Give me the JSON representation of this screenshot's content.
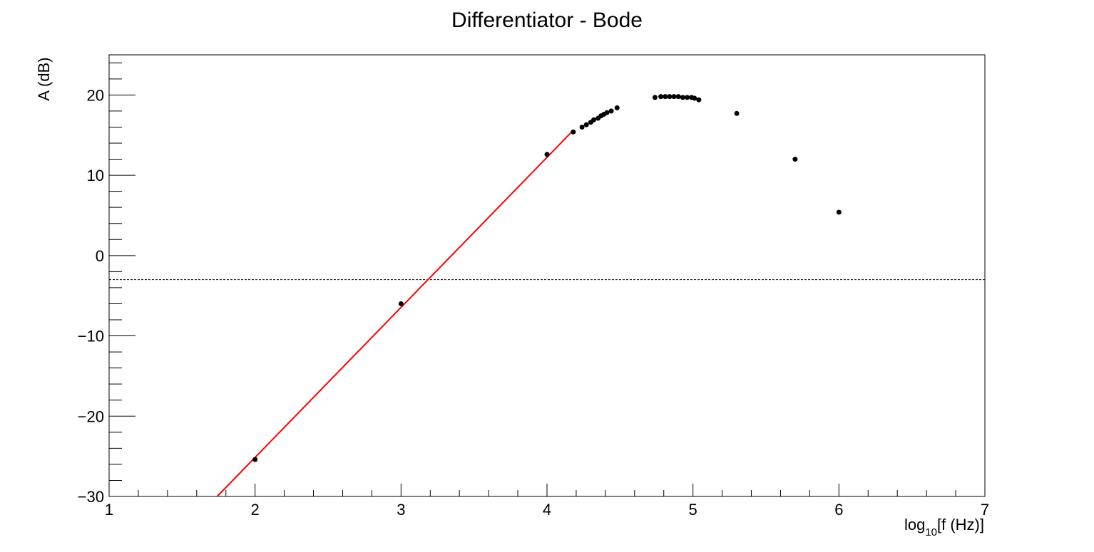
{
  "chart_data": {
    "type": "scatter",
    "title": "Differentiator - Bode",
    "xlabel_prefix": "log",
    "xlabel_sub": "10",
    "xlabel_suffix": "[f (Hz)]",
    "ylabel": "A (dB)",
    "xlim": [
      1,
      7
    ],
    "ylim": [
      -30,
      25
    ],
    "x_ticks": [
      1,
      2,
      3,
      4,
      5,
      6,
      7
    ],
    "y_ticks": [
      -30,
      -20,
      -10,
      0,
      10,
      20
    ],
    "y_tick_labels": [
      "−30",
      "−20",
      "−10",
      "0",
      "10",
      "20"
    ],
    "grid": false,
    "reference_line": {
      "y": -3.0,
      "style": "dotted",
      "color": "#000000"
    },
    "series": [
      {
        "marker_color": "#000000",
        "points": [
          [
            2.0,
            -25.4
          ],
          [
            3.0,
            -6.0
          ],
          [
            4.0,
            12.6
          ],
          [
            4.18,
            15.4
          ],
          [
            4.24,
            16.0
          ],
          [
            4.27,
            16.3
          ],
          [
            4.3,
            16.6
          ],
          [
            4.32,
            16.9
          ],
          [
            4.35,
            17.1
          ],
          [
            4.37,
            17.4
          ],
          [
            4.39,
            17.6
          ],
          [
            4.41,
            17.8
          ],
          [
            4.44,
            18.0
          ],
          [
            4.48,
            18.4
          ],
          [
            4.74,
            19.7
          ],
          [
            4.78,
            19.8
          ],
          [
            4.81,
            19.8
          ],
          [
            4.84,
            19.8
          ],
          [
            4.87,
            19.8
          ],
          [
            4.9,
            19.8
          ],
          [
            4.93,
            19.7
          ],
          [
            4.96,
            19.7
          ],
          [
            4.99,
            19.7
          ],
          [
            5.01,
            19.6
          ],
          [
            5.04,
            19.4
          ],
          [
            5.3,
            17.7
          ],
          [
            5.7,
            12.0
          ],
          [
            6.0,
            5.4
          ]
        ]
      },
      {
        "line_color": "#ff0000",
        "line": [
          [
            1.74,
            -30.0
          ],
          [
            4.18,
            15.6
          ]
        ]
      }
    ]
  }
}
